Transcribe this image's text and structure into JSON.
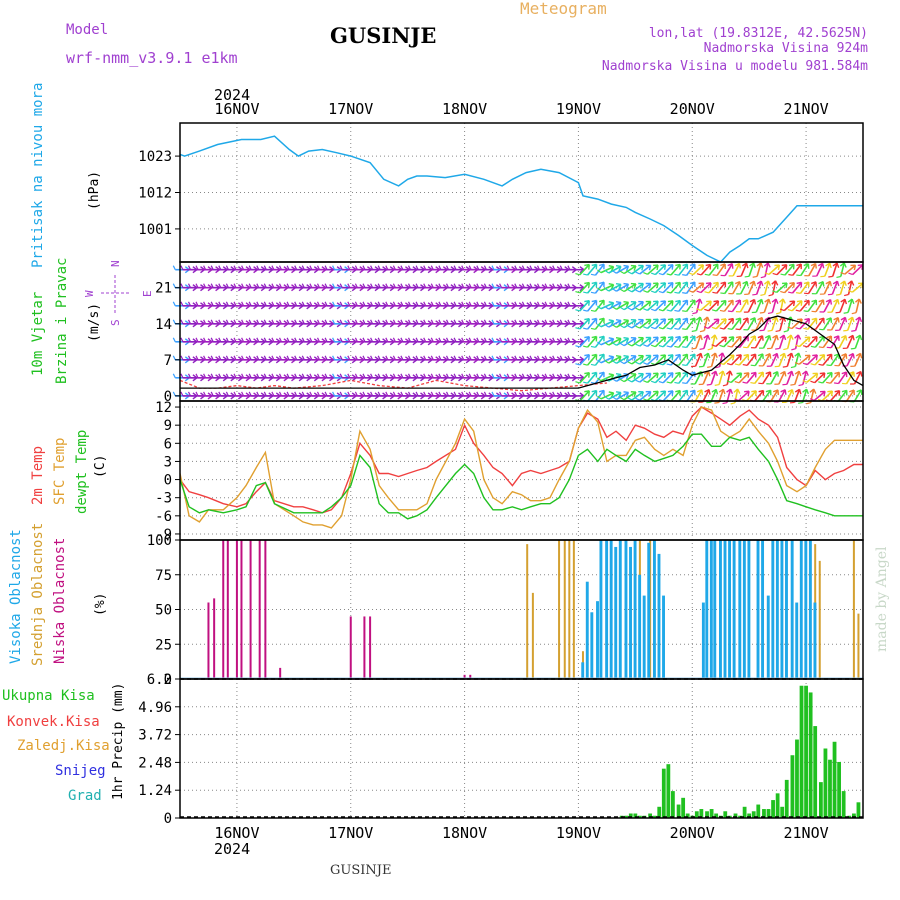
{
  "header": {
    "model_label": "Model",
    "model_name": "wrf-nmm_v3.9.1 e1km",
    "station": "GUSINJE",
    "app_title": "Meteogram",
    "lonlat": "lon,lat (19.8312E, 42.5625N)",
    "elevation": "Nadmorska Visina 924m",
    "model_elevation": "Nadmorska Visina u modelu 981.584m",
    "footer_station": "GUSINJE",
    "watermark": "made by Angel"
  },
  "colors": {
    "pressure": "#1fa8e8",
    "temp2m": "#f04040",
    "sfc_temp": "#e0a030",
    "dewpoint": "#20c020",
    "wind_speed": "#000000",
    "wind_gust": "#f04040",
    "cloud_high": "#1fa8e8",
    "cloud_mid": "#d4a030",
    "cloud_low": "#c01080",
    "precip_total": "#20c020",
    "precip_snow": "#3030e0",
    "precip_grad": "#20b0b0",
    "header_purple": "#a040d0",
    "meteogram_orange": "#e8b060"
  },
  "top_axis": {
    "year": "2024",
    "days": [
      "16NOV",
      "17NOV",
      "18NOV",
      "19NOV",
      "20NOV",
      "21NOV"
    ]
  },
  "bottom_axis": {
    "days": [
      "16NOV",
      "17NOV",
      "18NOV",
      "19NOV",
      "20NOV",
      "21NOV"
    ],
    "year": "2024"
  },
  "panels": {
    "pressure": {
      "label": "Pritisak na nivou mora",
      "unit": "(hPa)",
      "ticks": [
        "1023",
        "1012",
        "1001"
      ]
    },
    "wind": {
      "label1": "10m Vjetar",
      "label2": "Brzina i Pravac",
      "unit": "(m/s)",
      "ticks": [
        "21",
        "14",
        "7",
        "0"
      ],
      "compass": {
        "n": "N",
        "s": "S",
        "e": "E",
        "w": "W"
      }
    },
    "temp": {
      "label1": "2m Temp",
      "label2": "SFC Temp",
      "label3": "dewpt Temp",
      "unit": "(C)",
      "ticks": [
        "12",
        "9",
        "6",
        "3",
        "0",
        "-3",
        "-6",
        "-9"
      ]
    },
    "cloud": {
      "label1": "Visoka Oblacnost",
      "label2": "Srednja Oblacnost",
      "label3": "Niska Oblacnost",
      "unit": "(%)",
      "ticks": [
        "100",
        "75",
        "50",
        "25",
        "0"
      ]
    },
    "precip": {
      "legend": [
        "Ukupna Kisa",
        "Konvek.Kisa",
        "Zaledj.Kisa",
        "Snijeg",
        "Grad"
      ],
      "unit": "1hr Precip (mm)",
      "ticks": [
        "6.2",
        "4.96",
        "3.72",
        "2.48",
        "1.24",
        "0"
      ]
    }
  },
  "chart_data": {
    "type": "line",
    "x_unit": "days after 15NOV 2024 12:00 (hourly)",
    "x_range": [
      0,
      6
    ],
    "pressure": {
      "ylabel": "(hPa)",
      "ylim": [
        991,
        1033
      ],
      "x": [
        0,
        0.04,
        0.17,
        0.33,
        0.54,
        0.71,
        0.83,
        0.96,
        1.04,
        1.13,
        1.25,
        1.38,
        1.5,
        1.67,
        1.79,
        1.92,
        2.0,
        2.08,
        2.17,
        2.33,
        2.5,
        2.67,
        2.83,
        2.92,
        3.04,
        3.17,
        3.33,
        3.5,
        3.54,
        3.67,
        3.79,
        3.92,
        4.0,
        4.13,
        4.25,
        4.38,
        4.5,
        4.63,
        4.75,
        4.83,
        4.92,
        5.0,
        5.08,
        5.21,
        5.33,
        5.42,
        5.54,
        5.63,
        5.75,
        5.83,
        5.92,
        6.0
      ],
      "y": [
        1023.5,
        1023,
        1024.5,
        1026.5,
        1028,
        1028,
        1029,
        1025,
        1023,
        1024.5,
        1025,
        1024,
        1023,
        1021,
        1016,
        1014,
        1016,
        1017,
        1017,
        1016.5,
        1017.5,
        1016,
        1014,
        1016,
        1018,
        1019,
        1018,
        1015,
        1011,
        1010,
        1008.5,
        1007.5,
        1006,
        1004,
        1002,
        999,
        996,
        993,
        991,
        994,
        996,
        998,
        998,
        1000,
        1004.5,
        1008,
        1008,
        1008,
        1008,
        1008,
        1008,
        1008
      ]
    },
    "wind": {
      "ylabel": "(m/s)",
      "ylim": [
        -1,
        26
      ],
      "speed_x": [
        0,
        0.5,
        1.0,
        1.5,
        2.0,
        2.5,
        3.0,
        3.5,
        3.83,
        3.92,
        4.04,
        4.17,
        4.29,
        4.42,
        4.5,
        4.58,
        4.67,
        4.75,
        4.83,
        4.92,
        5.0,
        5.08,
        5.17,
        5.25,
        5.5,
        5.75,
        5.83,
        5.92,
        6.0
      ],
      "speed_y": [
        1.5,
        1.5,
        1.5,
        1.5,
        1.5,
        1.5,
        1.5,
        1.5,
        3.5,
        4,
        5.5,
        6,
        7,
        5,
        4,
        4.5,
        5,
        6.5,
        8,
        10,
        12,
        13,
        15,
        15.5,
        14,
        10,
        6,
        3,
        2
      ],
      "gust_x": [
        0,
        0.17,
        0.33,
        0.5,
        0.67,
        0.83,
        1.0,
        1.25,
        1.5,
        1.75,
        2.0,
        2.25,
        2.5,
        2.75,
        3.0,
        3.25,
        3.5,
        3.75
      ],
      "gust_y": [
        3,
        1.5,
        1.5,
        2,
        1.5,
        2,
        1.5,
        2,
        3,
        2,
        1.5,
        3,
        2,
        1.5,
        1,
        1.5,
        2,
        2.5
      ],
      "barb_rows_y": [
        0,
        3.5,
        7,
        10.5,
        14,
        17.5,
        21,
        24.5
      ],
      "barb_dir_deg": 90
    },
    "temperature": {
      "ylabel": "(C)",
      "ylim": [
        -10,
        13
      ],
      "x": [
        0,
        0.08,
        0.17,
        0.25,
        0.38,
        0.5,
        0.58,
        0.67,
        0.75,
        0.83,
        1.0,
        1.08,
        1.17,
        1.25,
        1.33,
        1.42,
        1.5,
        1.58,
        1.67,
        1.75,
        1.83,
        1.92,
        2.0,
        2.08,
        2.17,
        2.25,
        2.42,
        2.5,
        2.58,
        2.67,
        2.75,
        2.83,
        2.92,
        3.0,
        3.08,
        3.17,
        3.25,
        3.33,
        3.42,
        3.5,
        3.58,
        3.67,
        3.75,
        3.83,
        3.92,
        4.0,
        4.08,
        4.17,
        4.25,
        4.33,
        4.42,
        4.5,
        4.58,
        4.67,
        4.75,
        4.83,
        4.92,
        5.0,
        5.08,
        5.17,
        5.25,
        5.33,
        5.42,
        5.5,
        5.58,
        5.67,
        5.75,
        5.83,
        5.92,
        6.0
      ],
      "series": [
        {
          "name": "2m Temp",
          "values": [
            0,
            -2,
            -2.5,
            -3,
            -4,
            -4.5,
            -4,
            -2,
            -0.5,
            -3.5,
            -4.5,
            -4.5,
            -5,
            -5.5,
            -5,
            -3,
            1,
            6,
            4,
            1,
            1,
            0.5,
            1,
            1.5,
            2,
            3,
            5,
            9,
            6,
            4,
            2,
            1,
            -1,
            1,
            1.5,
            1,
            1.5,
            2,
            3,
            8.5,
            11,
            10,
            7,
            8,
            6.5,
            9,
            8.5,
            7.5,
            7,
            8,
            7.5,
            10.5,
            12,
            11,
            10,
            9,
            10.5,
            11.5,
            10,
            9,
            7,
            2,
            0,
            -1,
            1.5,
            0,
            1,
            1.5,
            2.5,
            2.5
          ]
        },
        {
          "name": "SFC Temp",
          "values": [
            1,
            -6,
            -7,
            -5,
            -5,
            -3,
            -1,
            2,
            4.5,
            -4,
            -6,
            -7,
            -7.5,
            -7.5,
            -8,
            -6,
            0,
            8,
            5,
            -1,
            -3,
            -5,
            -5,
            -5,
            -4,
            0,
            6,
            10,
            8,
            0,
            -3,
            -4,
            -2,
            -2.5,
            -3.5,
            -3.5,
            -3,
            0,
            3,
            8.5,
            11.5,
            9.5,
            3,
            4,
            4,
            6.5,
            7,
            5,
            4,
            5,
            4,
            9,
            12,
            11.5,
            8,
            7,
            8,
            10,
            8,
            6,
            3,
            -1,
            -2,
            -1,
            2,
            5,
            6.5,
            6.5,
            6.5,
            6.5
          ]
        },
        {
          "name": "dewpt Temp",
          "values": [
            0,
            -4.5,
            -5.5,
            -5,
            -5.5,
            -5,
            -4.5,
            -1,
            -0.5,
            -4,
            -5.5,
            -5.5,
            -5.5,
            -5.5,
            -4.5,
            -3,
            -1,
            4,
            2,
            -4,
            -5.5,
            -5.5,
            -6.5,
            -6,
            -5,
            -3,
            1,
            2.5,
            1,
            -3,
            -5,
            -5,
            -4.5,
            -5,
            -4.5,
            -4,
            -4,
            -3,
            0,
            4,
            5,
            3,
            5,
            4,
            3,
            5,
            4,
            3,
            3.5,
            4,
            5.5,
            7.5,
            7.5,
            5.5,
            5.5,
            7,
            6.5,
            7,
            5,
            3,
            0,
            -3.5,
            -4,
            -4.5,
            -5,
            -5.5,
            -6,
            -6,
            -6,
            -6
          ]
        }
      ]
    },
    "clouds": {
      "ylabel": "(%)",
      "ylim": [
        0,
        100
      ],
      "bar_width_days": 0.03,
      "series": [
        {
          "name": "Niska Oblacnost",
          "x": [
            0.25,
            0.3,
            0.38,
            0.42,
            0.5,
            0.54,
            0.62,
            0.7,
            0.75,
            0.88,
            1.5,
            1.62,
            1.67,
            2.5,
            2.55
          ],
          "values": [
            55,
            58,
            100,
            100,
            100,
            100,
            100,
            100,
            100,
            8,
            45,
            45,
            45,
            3,
            3
          ]
        },
        {
          "name": "Srednja Oblacnost",
          "x": [
            3.05,
            3.1,
            3.33,
            3.38,
            3.42,
            3.46,
            3.54,
            3.58,
            4.0,
            4.04,
            4.13,
            5.58,
            5.62,
            5.92,
            5.96
          ],
          "values": [
            97,
            62,
            100,
            100,
            100,
            100,
            20,
            15,
            100,
            100,
            100,
            97,
            85,
            100,
            47
          ]
        },
        {
          "name": "Visoka Oblacnost",
          "x": [
            3.54,
            3.58,
            3.62,
            3.67,
            3.7,
            3.75,
            3.79,
            3.83,
            3.87,
            3.92,
            3.96,
            4.0,
            4.04,
            4.08,
            4.12,
            4.17,
            4.21,
            4.25,
            4.6,
            4.63,
            4.67,
            4.7,
            4.75,
            4.79,
            4.83,
            4.87,
            4.92,
            4.96,
            5.0,
            5.08,
            5.12,
            5.17,
            5.21,
            5.25,
            5.29,
            5.33,
            5.38,
            5.42,
            5.46,
            5.5,
            5.54,
            5.58
          ],
          "values": [
            12,
            70,
            48,
            56,
            100,
            100,
            100,
            95,
            100,
            100,
            95,
            100,
            75,
            60,
            98,
            100,
            90,
            60,
            55,
            100,
            100,
            100,
            100,
            100,
            100,
            100,
            100,
            100,
            100,
            100,
            100,
            60,
            100,
            100,
            100,
            100,
            100,
            55,
            100,
            100,
            100,
            55
          ]
        }
      ]
    },
    "precip": {
      "ylabel": "1hr Precip (mm)",
      "ylim": [
        0,
        6.2
      ],
      "x": [
        3.88,
        3.92,
        3.96,
        4.0,
        4.04,
        4.08,
        4.13,
        4.17,
        4.21,
        4.25,
        4.29,
        4.33,
        4.38,
        4.42,
        4.46,
        4.5,
        4.54,
        4.58,
        4.63,
        4.67,
        4.71,
        4.75,
        4.79,
        4.83,
        4.88,
        4.92,
        4.96,
        5.0,
        5.04,
        5.08,
        5.13,
        5.17,
        5.21,
        5.25,
        5.29,
        5.33,
        5.38,
        5.42,
        5.46,
        5.5,
        5.54,
        5.58,
        5.63,
        5.67,
        5.71,
        5.75,
        5.79,
        5.83,
        5.88,
        5.92,
        5.96
      ],
      "values": [
        0.1,
        0.1,
        0.2,
        0.2,
        0.1,
        0.1,
        0.2,
        0.1,
        0.5,
        2.2,
        2.4,
        1.2,
        0.6,
        0.9,
        0.2,
        0.1,
        0.3,
        0.4,
        0.3,
        0.4,
        0.2,
        0.1,
        0.3,
        0.1,
        0.2,
        0.1,
        0.5,
        0.2,
        0.3,
        0.6,
        0.4,
        0.4,
        0.8,
        1.1,
        0.5,
        1.7,
        2.8,
        3.5,
        5.9,
        5.9,
        5.6,
        4.1,
        1.6,
        3.1,
        2.6,
        3.4,
        2.5,
        1.2,
        0.1,
        0.2,
        0.7
      ]
    }
  }
}
